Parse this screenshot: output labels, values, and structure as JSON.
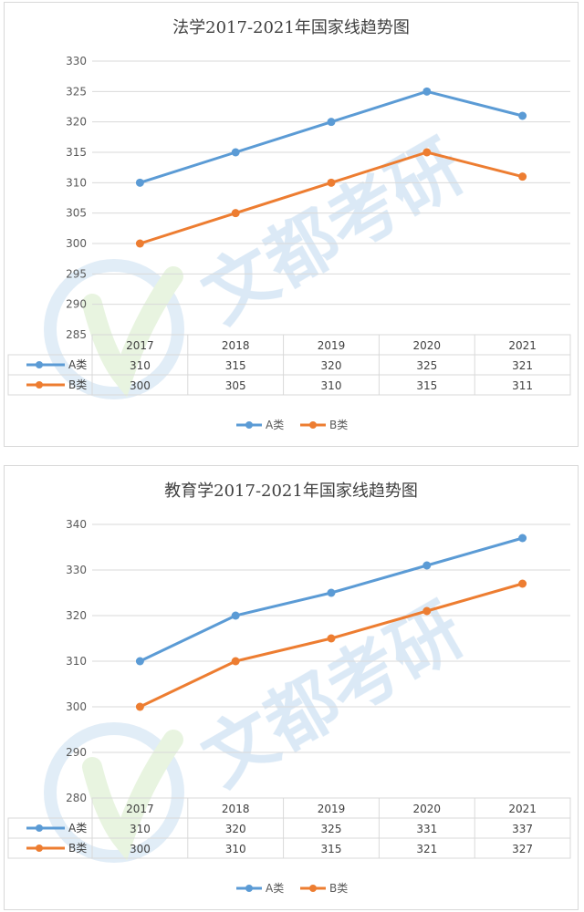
{
  "chart_data": [
    {
      "type": "line",
      "title": "法学2017-2021年国家线趋势图",
      "categories": [
        "2017",
        "2018",
        "2019",
        "2020",
        "2021"
      ],
      "series": [
        {
          "name": "A类",
          "values": [
            310,
            315,
            320,
            325,
            321
          ],
          "color": "#5b9bd5"
        },
        {
          "name": "B类",
          "values": [
            300,
            305,
            310,
            315,
            311
          ],
          "color": "#ed7d31"
        }
      ],
      "ylim": [
        285,
        330
      ],
      "yticks": [
        285,
        290,
        295,
        300,
        305,
        310,
        315,
        320,
        325,
        330
      ],
      "grid": true,
      "legend": "bottom",
      "data_table": true
    },
    {
      "type": "line",
      "title": "教育学2017-2021年国家线趋势图",
      "categories": [
        "2017",
        "2018",
        "2019",
        "2020",
        "2021"
      ],
      "series": [
        {
          "name": "A类",
          "values": [
            310,
            320,
            325,
            331,
            337
          ],
          "color": "#5b9bd5"
        },
        {
          "name": "B类",
          "values": [
            300,
            310,
            315,
            321,
            327
          ],
          "color": "#ed7d31"
        }
      ],
      "ylim": [
        280,
        340
      ],
      "yticks": [
        280,
        290,
        300,
        310,
        320,
        330,
        340
      ],
      "grid": true,
      "legend": "bottom",
      "data_table": true
    }
  ],
  "watermark": {
    "text": "文都考研",
    "color": "#bdd7ee"
  }
}
